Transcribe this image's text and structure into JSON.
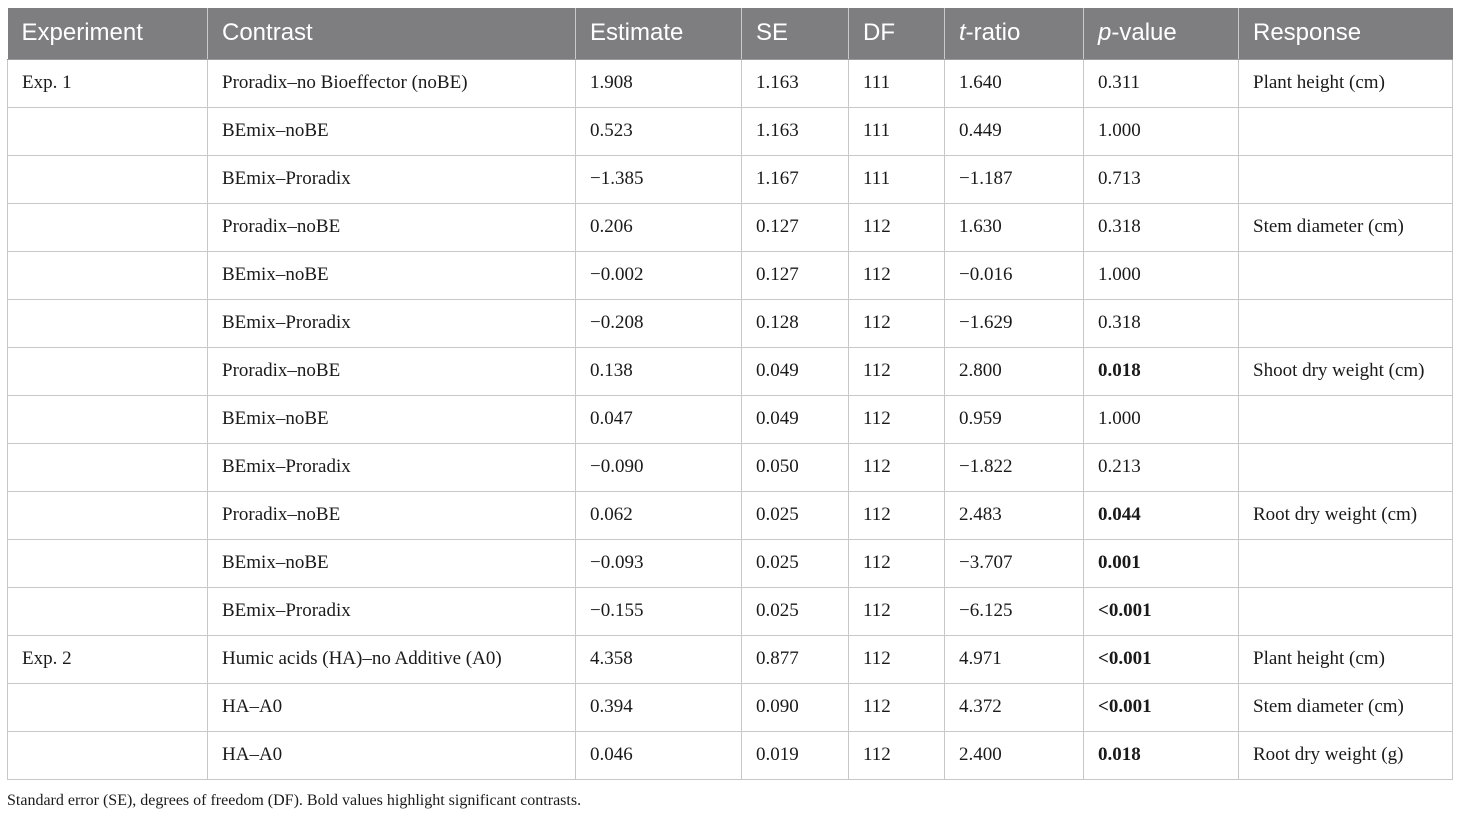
{
  "table": {
    "headers": [
      {
        "pre": "Experiment",
        "it": "",
        "post": ""
      },
      {
        "pre": "Contrast",
        "it": "",
        "post": ""
      },
      {
        "pre": "Estimate",
        "it": "",
        "post": ""
      },
      {
        "pre": "SE",
        "it": "",
        "post": ""
      },
      {
        "pre": "DF",
        "it": "",
        "post": ""
      },
      {
        "pre": "",
        "it": "t",
        "post": "-ratio"
      },
      {
        "pre": "",
        "it": "p",
        "post": "-value"
      },
      {
        "pre": "Response",
        "it": "",
        "post": ""
      }
    ],
    "rows": [
      {
        "experiment": "Exp. 1",
        "contrast": "Proradix–no Bioeffector (noBE)",
        "estimate": "1.908",
        "se": "1.163",
        "df": "111",
        "t_ratio": "1.640",
        "p_value": "0.311",
        "significant": false,
        "response": "Plant height (cm)"
      },
      {
        "experiment": "",
        "contrast": "BEmix–noBE",
        "estimate": "0.523",
        "se": "1.163",
        "df": "111",
        "t_ratio": "0.449",
        "p_value": "1.000",
        "significant": false,
        "response": ""
      },
      {
        "experiment": "",
        "contrast": "BEmix–Proradix",
        "estimate": "−1.385",
        "se": "1.167",
        "df": "111",
        "t_ratio": "−1.187",
        "p_value": "0.713",
        "significant": false,
        "response": ""
      },
      {
        "experiment": "",
        "contrast": "Proradix–noBE",
        "estimate": "0.206",
        "se": "0.127",
        "df": "112",
        "t_ratio": "1.630",
        "p_value": "0.318",
        "significant": false,
        "response": "Stem diameter (cm)"
      },
      {
        "experiment": "",
        "contrast": "BEmix–noBE",
        "estimate": "−0.002",
        "se": "0.127",
        "df": "112",
        "t_ratio": "−0.016",
        "p_value": "1.000",
        "significant": false,
        "response": ""
      },
      {
        "experiment": "",
        "contrast": "BEmix–Proradix",
        "estimate": "−0.208",
        "se": "0.128",
        "df": "112",
        "t_ratio": "−1.629",
        "p_value": "0.318",
        "significant": false,
        "response": ""
      },
      {
        "experiment": "",
        "contrast": "Proradix–noBE",
        "estimate": "0.138",
        "se": "0.049",
        "df": "112",
        "t_ratio": "2.800",
        "p_value": "0.018",
        "significant": true,
        "response": "Shoot dry weight (cm)"
      },
      {
        "experiment": "",
        "contrast": "BEmix–noBE",
        "estimate": "0.047",
        "se": "0.049",
        "df": "112",
        "t_ratio": "0.959",
        "p_value": "1.000",
        "significant": false,
        "response": ""
      },
      {
        "experiment": "",
        "contrast": "BEmix–Proradix",
        "estimate": "−0.090",
        "se": "0.050",
        "df": "112",
        "t_ratio": "−1.822",
        "p_value": "0.213",
        "significant": false,
        "response": ""
      },
      {
        "experiment": "",
        "contrast": "Proradix–noBE",
        "estimate": "0.062",
        "se": "0.025",
        "df": "112",
        "t_ratio": "2.483",
        "p_value": "0.044",
        "significant": true,
        "response": "Root dry weight (cm)"
      },
      {
        "experiment": "",
        "contrast": "BEmix–noBE",
        "estimate": "−0.093",
        "se": "0.025",
        "df": "112",
        "t_ratio": "−3.707",
        "p_value": "0.001",
        "significant": true,
        "response": ""
      },
      {
        "experiment": "",
        "contrast": "BEmix–Proradix",
        "estimate": "−0.155",
        "se": "0.025",
        "df": "112",
        "t_ratio": "−6.125",
        "p_value": "<0.001",
        "significant": true,
        "response": ""
      },
      {
        "experiment": "Exp. 2",
        "contrast": "Humic acids (HA)–no Additive (A0)",
        "estimate": "4.358",
        "se": "0.877",
        "df": "112",
        "t_ratio": "4.971",
        "p_value": "<0.001",
        "significant": true,
        "response": "Plant height (cm)"
      },
      {
        "experiment": "",
        "contrast": "HA–A0",
        "estimate": "0.394",
        "se": "0.090",
        "df": "112",
        "t_ratio": "4.372",
        "p_value": "<0.001",
        "significant": true,
        "response": "Stem diameter (cm)"
      },
      {
        "experiment": "",
        "contrast": "HA–A0",
        "estimate": "0.046",
        "se": "0.019",
        "df": "112",
        "t_ratio": "2.400",
        "p_value": "0.018",
        "significant": true,
        "response": "Root dry weight (g)"
      }
    ]
  },
  "footnote": "Standard error (SE), degrees of freedom (DF). Bold values highlight significant contrasts.",
  "colors": {
    "header_bg": "#7e7e80",
    "header_text": "#ffffff",
    "grid": "#c8c8c8"
  }
}
